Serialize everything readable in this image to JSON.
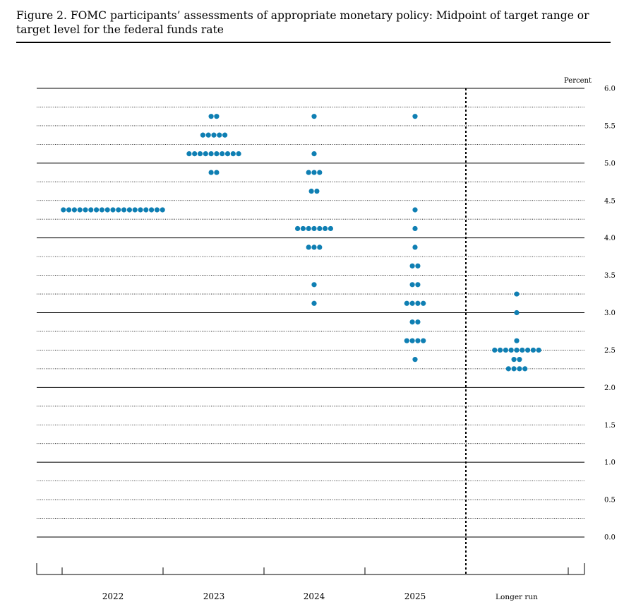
{
  "figure": {
    "title": "Figure 2.  FOMC participants’ assessments of appropriate monetary policy:  Midpoint of target range or target level for the federal funds rate"
  },
  "colors": {
    "dot": "#0f7fb3",
    "line": "#000000"
  },
  "chart_data": {
    "type": "scatter",
    "unit_label": "Percent",
    "categories": [
      "2022",
      "2023",
      "2024",
      "2025",
      "Longer run"
    ],
    "ylim": [
      0.0,
      6.0
    ],
    "y_ticks": [
      "0.0",
      "0.5",
      "1.0",
      "1.5",
      "2.0",
      "2.5",
      "3.0",
      "3.5",
      "4.0",
      "4.5",
      "5.0",
      "5.5",
      "6.0"
    ],
    "grid": "dotted lines at every 0.25 percentage point, solid lines at whole numbers",
    "legend": "none",
    "divider": "vertical dotted line between 2025 and Longer run",
    "dots": [
      {
        "category": "2022",
        "points": [
          {
            "y": 4.375,
            "count": 19
          }
        ]
      },
      {
        "category": "2023",
        "points": [
          {
            "y": 5.625,
            "count": 2
          },
          {
            "y": 5.375,
            "count": 5
          },
          {
            "y": 5.125,
            "count": 10
          },
          {
            "y": 4.875,
            "count": 2
          }
        ]
      },
      {
        "category": "2024",
        "points": [
          {
            "y": 5.625,
            "count": 1
          },
          {
            "y": 5.125,
            "count": 1
          },
          {
            "y": 4.875,
            "count": 3
          },
          {
            "y": 4.625,
            "count": 2
          },
          {
            "y": 4.125,
            "count": 7
          },
          {
            "y": 3.875,
            "count": 3
          },
          {
            "y": 3.375,
            "count": 1
          },
          {
            "y": 3.125,
            "count": 1
          }
        ]
      },
      {
        "category": "2025",
        "points": [
          {
            "y": 5.625,
            "count": 1
          },
          {
            "y": 4.375,
            "count": 1
          },
          {
            "y": 4.125,
            "count": 1
          },
          {
            "y": 3.875,
            "count": 1
          },
          {
            "y": 3.625,
            "count": 2
          },
          {
            "y": 3.375,
            "count": 2
          },
          {
            "y": 3.125,
            "count": 4
          },
          {
            "y": 2.875,
            "count": 2
          },
          {
            "y": 2.625,
            "count": 4
          },
          {
            "y": 2.375,
            "count": 1
          }
        ]
      },
      {
        "category": "Longer run",
        "points": [
          {
            "y": 3.25,
            "count": 1
          },
          {
            "y": 3.0,
            "count": 1
          },
          {
            "y": 2.625,
            "count": 1
          },
          {
            "y": 2.5,
            "count": 9
          },
          {
            "y": 2.375,
            "count": 2
          },
          {
            "y": 2.25,
            "count": 4
          }
        ]
      }
    ]
  }
}
